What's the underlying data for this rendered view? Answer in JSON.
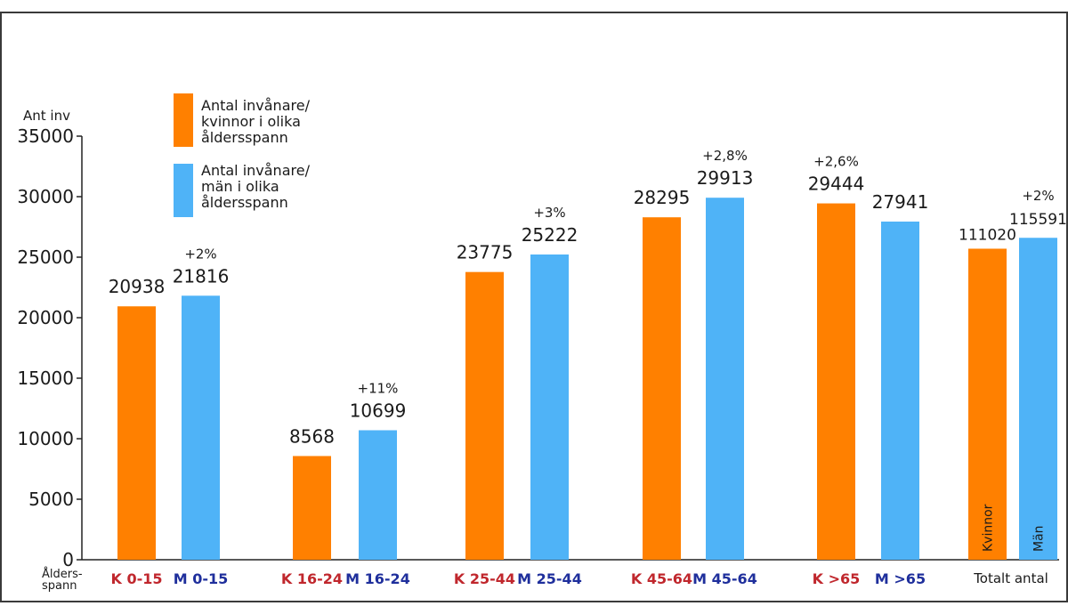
{
  "chart_data": {
    "type": "bar",
    "ylabel": "Ant inv",
    "xlabel": "Åldersspann",
    "ylim": [
      0,
      35000
    ],
    "yticks": [
      0,
      5000,
      10000,
      15000,
      20000,
      25000,
      30000,
      35000
    ],
    "grid": false,
    "legend_placement": "top-left",
    "legend": [
      {
        "label": "Antal invånare/ kvinnor i olika åldersspann",
        "lines": [
          "Antal invånare/",
          "kvinnor i olika",
          "åldersspann"
        ],
        "color": "#ff8000"
      },
      {
        "label": "Antal invånare/ män i olika åldersspann",
        "lines": [
          "Antal invånare/",
          "män i olika",
          "åldersspann"
        ],
        "color": "#4fb3f7"
      }
    ],
    "colors": {
      "kvinnor": "#ff8000",
      "man": "#4fb3f7",
      "k_label": "#c0272d",
      "m_label": "#1f2f9c"
    },
    "bars": [
      {
        "category": "K 0-15",
        "group": "kvinnor",
        "value": 20938,
        "label": "20938",
        "change": ""
      },
      {
        "category": "M 0-15",
        "group": "man",
        "value": 21816,
        "label": "21816",
        "change": "+2%"
      },
      {
        "category": "K 16-24",
        "group": "kvinnor",
        "value": 8568,
        "label": "8568",
        "change": ""
      },
      {
        "category": "M 16-24",
        "group": "man",
        "value": 10699,
        "label": "10699",
        "change": "+11%"
      },
      {
        "category": "K 25-44",
        "group": "kvinnor",
        "value": 23775,
        "label": "23775",
        "change": ""
      },
      {
        "category": "M 25-44",
        "group": "man",
        "value": 25222,
        "label": "25222",
        "change": "+3%"
      },
      {
        "category": "K 45-64",
        "group": "kvinnor",
        "value": 28295,
        "label": "28295",
        "change": ""
      },
      {
        "category": "M 45-64",
        "group": "man",
        "value": 29913,
        "label": "29913",
        "change": "+2,8%"
      },
      {
        "category": "K >65",
        "group": "kvinnor",
        "value": 29444,
        "label": "29444",
        "change": "+2,6%"
      },
      {
        "category": "M >65",
        "group": "man",
        "value": 27941,
        "label": "27941",
        "change": ""
      }
    ],
    "total": {
      "category": "Totalt antal",
      "kvinnor": {
        "value": 111020,
        "axis_value": 25700,
        "label": "111020",
        "inner_label": "Kvinnor"
      },
      "man": {
        "value": 115591,
        "axis_value": 26600,
        "label": "115591",
        "inner_label": "Män",
        "change": "+2%"
      }
    }
  }
}
